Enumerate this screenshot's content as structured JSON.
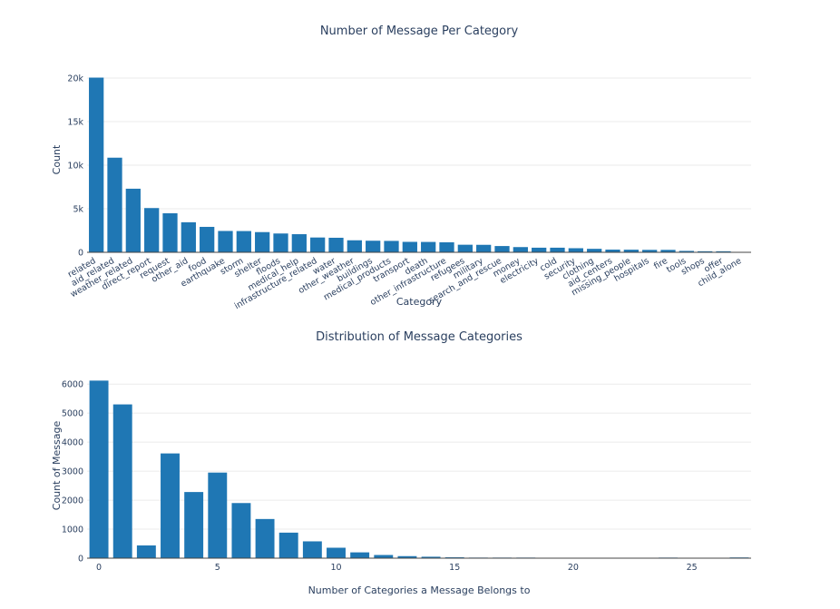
{
  "chart_data": [
    {
      "type": "bar",
      "title": "Number of Message Per Category",
      "xlabel": "Category",
      "ylabel": "Count",
      "ylim": [
        0,
        20000
      ],
      "yticks": [
        0,
        5000,
        10000,
        15000,
        20000
      ],
      "ytick_labels": [
        "0",
        "5k",
        "10k",
        "15k",
        "20k"
      ],
      "grid": true,
      "bar_color": "#1f77b4",
      "categories": [
        "related",
        "aid_related",
        "weather_related",
        "direct_report",
        "request",
        "other_aid",
        "food",
        "earthquake",
        "storm",
        "shelter",
        "floods",
        "medical_help",
        "infrastructure_related",
        "water",
        "other_weather",
        "buildings",
        "medical_products",
        "transport",
        "death",
        "other_infrastructure",
        "refugees",
        "military",
        "search_and_rescue",
        "money",
        "electricity",
        "cold",
        "security",
        "clothing",
        "aid_centers",
        "missing_people",
        "hospitals",
        "fire",
        "tools",
        "shops",
        "offer",
        "child_alone"
      ],
      "values": [
        20050,
        10860,
        7300,
        5080,
        4480,
        3450,
        2920,
        2450,
        2440,
        2320,
        2160,
        2080,
        1700,
        1670,
        1380,
        1330,
        1310,
        1200,
        1190,
        1150,
        870,
        860,
        720,
        600,
        530,
        530,
        470,
        400,
        310,
        300,
        280,
        280,
        160,
        120,
        120,
        0
      ]
    },
    {
      "type": "bar",
      "title": "Distribution of Message Categories",
      "xlabel": "Number of Categories a Message Belongs to",
      "ylabel": "Count of Message",
      "xlim": [
        -0.5,
        27.5
      ],
      "ylim": [
        0,
        6100
      ],
      "xticks": [
        0,
        5,
        10,
        15,
        20,
        25
      ],
      "yticks": [
        0,
        1000,
        2000,
        3000,
        4000,
        5000,
        6000
      ],
      "grid": true,
      "bar_color": "#1f77b4",
      "x": [
        0,
        1,
        2,
        3,
        4,
        5,
        6,
        7,
        8,
        9,
        10,
        11,
        12,
        13,
        14,
        15,
        16,
        17,
        18,
        19,
        20,
        21,
        22,
        23,
        24,
        25,
        26,
        27
      ],
      "values": [
        6120,
        5300,
        440,
        3610,
        2280,
        2950,
        1900,
        1350,
        880,
        580,
        360,
        200,
        110,
        70,
        50,
        30,
        20,
        20,
        20,
        15,
        15,
        15,
        15,
        0,
        20,
        0,
        0,
        25
      ]
    }
  ]
}
